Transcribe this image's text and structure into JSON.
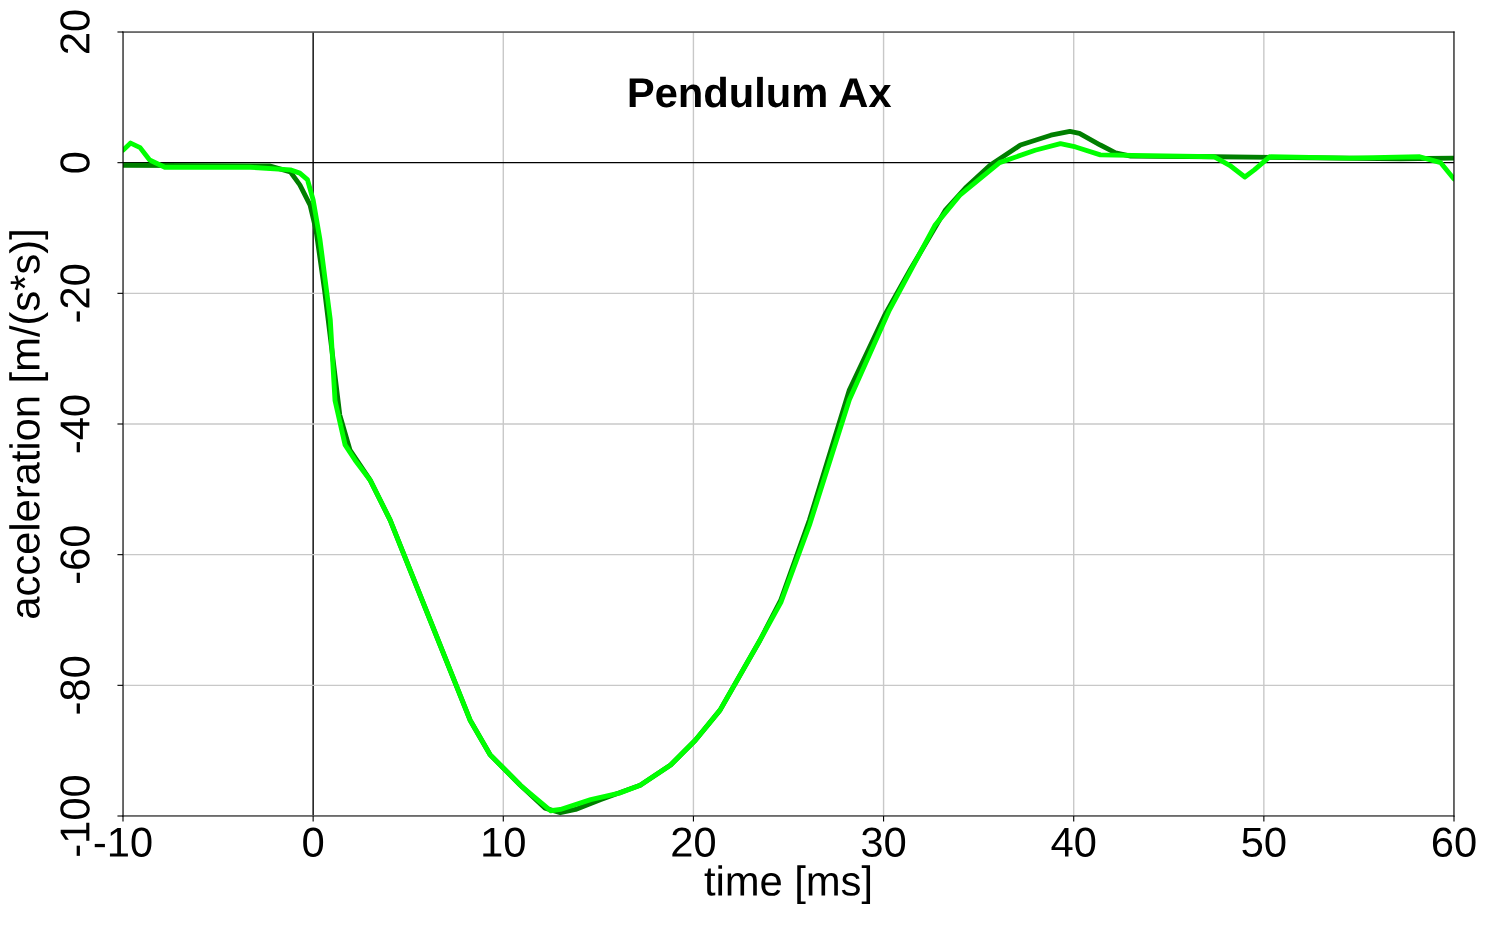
{
  "chart_data": {
    "type": "line",
    "title": "Pendulum Ax",
    "xlabel": "time [ms]",
    "ylabel": "acceleration [m/(s*s)]",
    "xlim": [
      -10,
      60
    ],
    "ylim": [
      -100,
      20
    ],
    "xticks": [
      -10,
      0,
      10,
      20,
      30,
      40,
      50,
      60
    ],
    "yticks": [
      -100,
      -80,
      -60,
      -40,
      -20,
      0,
      20
    ],
    "grid": true,
    "legend": false,
    "line_style": "solid",
    "series": [
      {
        "color": "#007f00",
        "x": [
          -10,
          -2.3,
          -1.2,
          -0.7,
          -0.16,
          0.15,
          0.6,
          1.05,
          1.4,
          1.94,
          3.0,
          4.05,
          6.15,
          8.25,
          9.3,
          10.9,
          12.2,
          13,
          13.8,
          15.1,
          17.2,
          18.8,
          20.1,
          21.4,
          23.5,
          24.6,
          26.1,
          28.2,
          30.05,
          31.4,
          33.24,
          34.3,
          35.6,
          37.2,
          38.8,
          39.8,
          40.3,
          41.4,
          42.2,
          43,
          47.4,
          57.2,
          60
        ],
        "values": [
          -0.4,
          -0.5,
          -1.4,
          -3.4,
          -6.5,
          -10.3,
          -19.5,
          -30.2,
          -38.6,
          -44,
          -48.6,
          -54.7,
          -70,
          -85.3,
          -90.6,
          -95.3,
          -98.8,
          -99.5,
          -99,
          -97.5,
          -95.3,
          -92.2,
          -88.4,
          -83.8,
          -73.1,
          -66.9,
          -54.7,
          -34.8,
          -23.4,
          -16.4,
          -7.3,
          -3.9,
          -0.4,
          2.7,
          4.2,
          4.8,
          4.5,
          2.7,
          1.5,
          1.0,
          0.9,
          0.6,
          0.7
        ]
      },
      {
        "color": "#00ff00",
        "x": [
          -10,
          -9.6,
          -9.1,
          -8.6,
          -7.8,
          -3.3,
          -1.2,
          -0.7,
          -0.3,
          0.0,
          0.36,
          0.9,
          1.15,
          1.68,
          2.2,
          3.0,
          4.05,
          6.15,
          8.25,
          9.3,
          10.9,
          12.5,
          13,
          14.6,
          16.1,
          17.2,
          18.8,
          20.1,
          21.4,
          23.5,
          24.6,
          26.1,
          28.2,
          30.3,
          32.7,
          34.0,
          36.1,
          37.97,
          39.3,
          40.1,
          41.4,
          47.4,
          48.2,
          49.0,
          49.5,
          50.3,
          54.5,
          58.2,
          59.3,
          60
        ],
        "values": [
          1.9,
          3.0,
          2.3,
          0.4,
          -0.7,
          -0.7,
          -1.1,
          -1.6,
          -2.6,
          -5.7,
          -11.8,
          -24,
          -36.4,
          -43.2,
          -45.5,
          -48.6,
          -54.7,
          -70,
          -85.3,
          -90.6,
          -95.3,
          -99.2,
          -99,
          -97.5,
          -96.5,
          -95.3,
          -92.2,
          -88.4,
          -83.8,
          -73.1,
          -67.3,
          -55.5,
          -36.3,
          -22.6,
          -9.6,
          -5,
          0,
          1.9,
          2.9,
          2.4,
          1.2,
          0.9,
          -0.4,
          -2.2,
          -1.1,
          0.9,
          0.7,
          0.9,
          0,
          -2.5
        ]
      }
    ]
  }
}
